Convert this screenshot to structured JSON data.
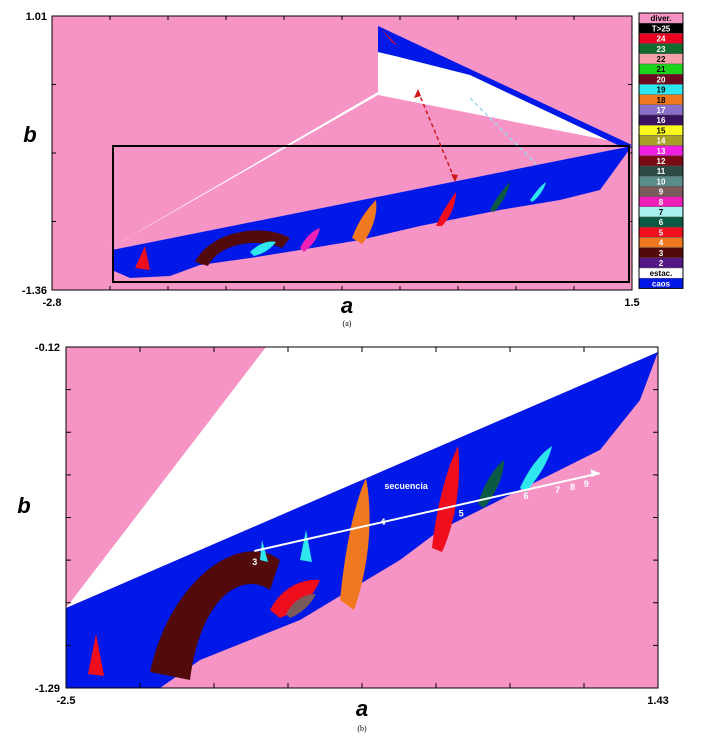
{
  "colors": {
    "background": "#f794c6",
    "chaos": "#0018e8",
    "stationary": "#ffffff",
    "frame": "#000000"
  },
  "chart_data": [
    {
      "type": "heatmap",
      "panel_caption": "(a)",
      "xlabel": "a",
      "ylabel": "b",
      "xlim": [
        -2.8,
        1.5
      ],
      "ylim": [
        -1.36,
        1.01
      ],
      "x_ticks_labeled": [
        "-2.8",
        "1.5"
      ],
      "y_ticks_labeled": [
        "1.01",
        "-1.36"
      ],
      "legend": {
        "placement": "right",
        "entries": [
          {
            "label": "diver.",
            "color": "#f794c6",
            "text_color": "#000000"
          },
          {
            "label": "T>25",
            "color": "#000000",
            "text_color": "#ffffff"
          },
          {
            "label": "24",
            "color": "#e8001e",
            "text_color": "#ffffff"
          },
          {
            "label": "23",
            "color": "#126b2f",
            "text_color": "#ffffff"
          },
          {
            "label": "22",
            "color": "#f7a0a8",
            "text_color": "#000000"
          },
          {
            "label": "21",
            "color": "#1bd31b",
            "text_color": "#000000"
          },
          {
            "label": "20",
            "color": "#6b0a20",
            "text_color": "#ffffff"
          },
          {
            "label": "19",
            "color": "#2ee6ee",
            "text_color": "#000000"
          },
          {
            "label": "18",
            "color": "#f0781e",
            "text_color": "#000000"
          },
          {
            "label": "17",
            "color": "#8a70c8",
            "text_color": "#ffffff"
          },
          {
            "label": "16",
            "color": "#3a1260",
            "text_color": "#ffffff"
          },
          {
            "label": "15",
            "color": "#f8f820",
            "text_color": "#000000"
          },
          {
            "label": "14",
            "color": "#a8a028",
            "text_color": "#ffffff"
          },
          {
            "label": "13",
            "color": "#ee1ee0",
            "text_color": "#ffffff"
          },
          {
            "label": "12",
            "color": "#7a0a14",
            "text_color": "#ffffff"
          },
          {
            "label": "11",
            "color": "#2e4a46",
            "text_color": "#ffffff"
          },
          {
            "label": "10",
            "color": "#5a8c8c",
            "text_color": "#ffffff"
          },
          {
            "label": "9",
            "color": "#7a5a5a",
            "text_color": "#ffffff"
          },
          {
            "label": "8",
            "color": "#ee20b8",
            "text_color": "#ffffff"
          },
          {
            "label": "7",
            "color": "#a8f0f0",
            "text_color": "#000000"
          },
          {
            "label": "6",
            "color": "#0c5a44",
            "text_color": "#ffffff"
          },
          {
            "label": "5",
            "color": "#ee0e1e",
            "text_color": "#ffffff"
          },
          {
            "label": "4",
            "color": "#f0781e",
            "text_color": "#ffffff"
          },
          {
            "label": "3",
            "color": "#520a0a",
            "text_color": "#ffffff"
          },
          {
            "label": "2",
            "color": "#541684",
            "text_color": "#ffffff"
          },
          {
            "label": "estac.",
            "color": "#ffffff",
            "text_color": "#000000"
          },
          {
            "label": "caos",
            "color": "#0018e8",
            "text_color": "#ffffff"
          }
        ]
      },
      "zoom_box": {
        "x": [
          -2.5,
          1.43
        ],
        "y": [
          -1.29,
          -0.12
        ]
      },
      "annotations": [
        {
          "type": "double-arrow",
          "color": "#cc1a1a",
          "from": [
            0.1,
            0.85
          ],
          "to": [
            0.62,
            -0.42
          ]
        },
        {
          "type": "arrow",
          "color": "#9ad8ee",
          "from": [
            0.2,
            0.75
          ],
          "to": [
            1.0,
            -0.22
          ]
        }
      ]
    },
    {
      "type": "heatmap",
      "panel_caption": "(b)",
      "xlabel": "a",
      "ylabel": "b",
      "xlim": [
        -2.5,
        1.43
      ],
      "ylim": [
        -1.29,
        -0.12
      ],
      "x_ticks_labeled": [
        "-2.5",
        "1.43"
      ],
      "y_ticks_labeled": [
        "-0.12",
        "-1.29"
      ],
      "annotation_line": {
        "label": "secuencia",
        "color": "#ffffff",
        "points": [
          {
            "label": "3",
            "a": -1.25,
            "b": -0.82
          },
          {
            "label": "4",
            "a": -0.4,
            "b": -0.69
          },
          {
            "label": "5",
            "a": 0.12,
            "b": -0.66
          },
          {
            "label": "6",
            "a": 0.55,
            "b": -0.6
          },
          {
            "label": "7",
            "a": 0.76,
            "b": -0.58
          },
          {
            "label": "8",
            "a": 0.86,
            "b": -0.57
          },
          {
            "label": "9",
            "a": 0.95,
            "b": -0.56
          }
        ]
      }
    }
  ]
}
